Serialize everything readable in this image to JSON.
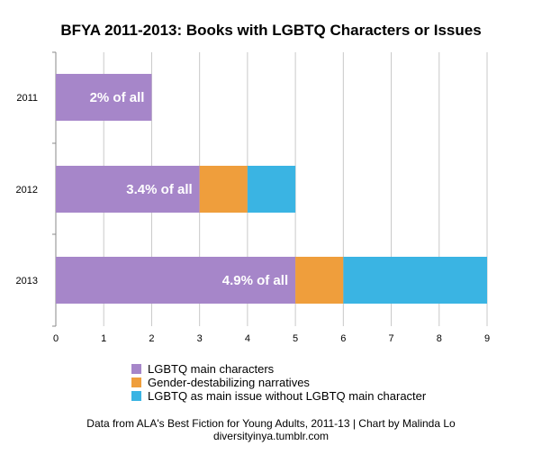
{
  "chart_data": {
    "type": "bar",
    "orientation": "horizontal",
    "stacked": true,
    "title": "BFYA 2011-2013: Books with LGBTQ Characters or Issues",
    "categories": [
      "2011",
      "2012",
      "2013"
    ],
    "series": [
      {
        "name": "LGBTQ main characters",
        "values": [
          2,
          3,
          5
        ],
        "color": "#a686c9"
      },
      {
        "name": "Gender-destabilizing narratives",
        "values": [
          0,
          1,
          1
        ],
        "color": "#ef9e3c"
      },
      {
        "name": "LGBTQ as main issue without LGBTQ main character",
        "values": [
          0,
          1,
          3
        ],
        "color": "#3ab4e3"
      }
    ],
    "bar_labels": [
      "2% of all",
      "3.4% of all",
      "4.9% of all"
    ],
    "x_ticks": [
      "0",
      "1",
      "2",
      "3",
      "4",
      "5",
      "6",
      "7",
      "8",
      "9"
    ],
    "xlim": [
      0,
      9
    ],
    "grid": "vertical",
    "legend_position": "bottom"
  },
  "footer": {
    "line1": "Data from ALA's Best Fiction for Young Adults, 2011-13 | Chart by Malinda Lo",
    "line2": "diversityinya.tumblr.com"
  }
}
